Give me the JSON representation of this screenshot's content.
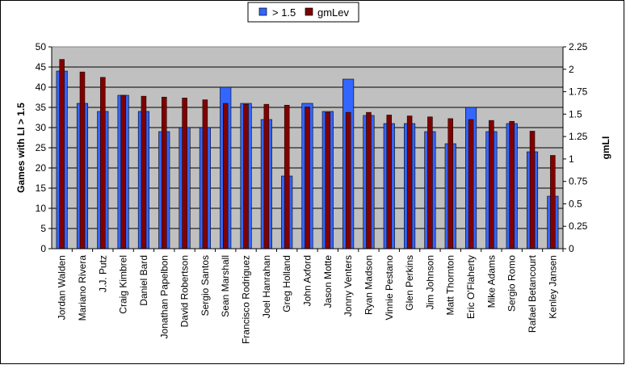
{
  "chart_data": {
    "type": "bar",
    "title": "",
    "xlabel": "",
    "ylabel": "Games with LI > 1.5",
    "ylabel_right": "gmLI",
    "ylim": [
      0,
      50
    ],
    "y_ticks": [
      "0",
      "5",
      "10",
      "15",
      "20",
      "25",
      "30",
      "35",
      "40",
      "45",
      "50"
    ],
    "ylim_right": [
      0,
      2.25
    ],
    "y_ticks_right": [
      "0",
      "0.25",
      "0.5",
      "0.75",
      "1",
      "1.25",
      "1.5",
      "1.75",
      "2",
      "2.25"
    ],
    "grid": true,
    "legend_position": "top-center",
    "colors": {
      "plot_background": "#c0c0c0",
      "series1": "#3366ff",
      "series2": "#800000"
    },
    "categories": [
      "Jordan Walden",
      "Mariano Rivera",
      "J.J. Putz",
      "Craig Kimbrel",
      "Daniel Bard",
      "Jonathan Papelbon",
      "David Robertson",
      "Sergio Santos",
      "Sean Marshall",
      "Francisco Rodriguez",
      "Joel Hanrahan",
      "Greg Holland",
      "John Axford",
      "Jason Motte",
      "Jonny Venters",
      "Ryan Madson",
      "Vinnie Pestano",
      "Glen Perkins",
      "Jim Johnson",
      "Matt Thornton",
      "Eric O'Flaherty",
      "Mike Adams",
      "Sergio Romo",
      "Rafael Betancourt",
      "Kenley Jansen"
    ],
    "series": [
      {
        "name": "> 1.5",
        "axis": "left",
        "values": [
          44,
          36,
          34,
          38,
          34,
          29,
          30,
          30,
          40,
          36,
          32,
          18,
          36,
          34,
          42,
          33,
          31,
          31,
          29,
          26,
          35,
          29,
          31,
          24,
          13
        ]
      },
      {
        "name": "gmLev",
        "axis": "right",
        "values": [
          2.11,
          1.97,
          1.91,
          1.71,
          1.7,
          1.69,
          1.68,
          1.66,
          1.62,
          1.61,
          1.61,
          1.6,
          1.58,
          1.52,
          1.52,
          1.52,
          1.49,
          1.48,
          1.47,
          1.45,
          1.44,
          1.43,
          1.42,
          1.31,
          1.04
        ]
      }
    ]
  }
}
